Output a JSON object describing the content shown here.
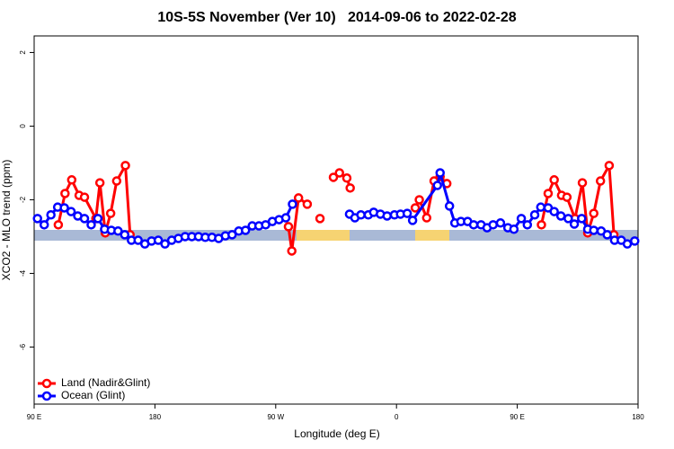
{
  "chart_data": {
    "type": "line",
    "title": "10S-5S November (Ver 10)   2014-09-06 to 2022-02-28",
    "x_label": "Longitude (deg E)",
    "y_label": "XCO2 - MLO trend (ppm)",
    "xlim": [
      90,
      540
    ],
    "xticks": [
      {
        "value": 90,
        "label": "90 E"
      },
      {
        "value": 180,
        "label": "180"
      },
      {
        "value": 270,
        "label": "90 W"
      },
      {
        "value": 360,
        "label": "0"
      },
      {
        "value": 450,
        "label": "90 E"
      },
      {
        "value": 540,
        "label": "180"
      }
    ],
    "ylim": [
      -7.55,
      2.45
    ],
    "yticks": [
      2,
      0,
      -2,
      -4,
      -6
    ],
    "legend": "bottom-left",
    "series": [
      {
        "name": "Land (Nadir&Glint)",
        "color": "#ff0000",
        "x": [
          108,
          113,
          118,
          123.5,
          127.5,
          136,
          139,
          143,
          147,
          151.5,
          158,
          161.5,
          null,
          279.5,
          282,
          287,
          293.5,
          null,
          303,
          null,
          313,
          317.5,
          323,
          325.5,
          null,
          374,
          377,
          382.5,
          388,
          392.5,
          397.5,
          null,
          468,
          473,
          477.5,
          483,
          487,
          493,
          498.5,
          502.5,
          507,
          512,
          518.5,
          522
        ],
        "values": [
          -2.68,
          -1.83,
          -1.46,
          -1.88,
          -1.93,
          -2.51,
          -1.54,
          -2.9,
          -2.37,
          -1.49,
          -1.07,
          -2.95,
          null,
          -2.73,
          -3.39,
          -1.95,
          -2.12,
          null,
          -2.51,
          null,
          -1.39,
          -1.27,
          -1.41,
          -1.68,
          null,
          -2.22,
          -2.0,
          -2.49,
          -1.49,
          -1.37,
          -1.56,
          null,
          -2.68,
          -1.83,
          -1.46,
          -1.88,
          -1.93,
          -2.51,
          -1.54,
          -2.9,
          -2.37,
          -1.49,
          -1.07,
          -2.95
        ]
      },
      {
        "name": "Ocean (Glint)",
        "color": "#0000ff",
        "x": [
          92.5,
          97.5,
          102.5,
          107.5,
          112.5,
          117.5,
          122.5,
          127.5,
          132.5,
          137.5,
          142.5,
          147.5,
          152.5,
          157.5,
          162.5,
          167.5,
          172.5,
          177.5,
          182.5,
          187.5,
          192.5,
          197.5,
          202.5,
          207.5,
          212.5,
          217.5,
          222.5,
          227.5,
          232.5,
          237.5,
          242.5,
          247.5,
          252.5,
          257.5,
          262.5,
          267.5,
          272.5,
          277.5,
          282.5,
          null,
          325,
          329,
          333.5,
          339,
          343,
          348,
          353,
          358.5,
          363,
          368,
          372,
          390.5,
          392.5,
          399.5,
          403.5,
          408,
          413,
          417.5,
          423,
          427.5,
          432,
          437.5,
          443,
          447.5,
          453,
          457.5,
          463,
          467.5,
          473,
          477.5,
          482.5,
          488,
          492.5,
          498,
          502.5,
          507,
          512.5,
          517,
          522.5,
          527.5,
          532,
          537.5
        ],
        "values": [
          -2.51,
          -2.68,
          -2.41,
          -2.2,
          -2.22,
          -2.32,
          -2.44,
          -2.51,
          -2.68,
          -2.51,
          -2.8,
          -2.83,
          -2.85,
          -2.95,
          -3.1,
          -3.1,
          -3.2,
          -3.12,
          -3.1,
          -3.2,
          -3.1,
          -3.05,
          -3.0,
          -3.0,
          -3.0,
          -3.02,
          -3.02,
          -3.05,
          -2.98,
          -2.95,
          -2.85,
          -2.83,
          -2.71,
          -2.71,
          -2.68,
          -2.59,
          -2.54,
          -2.49,
          -2.12,
          null,
          -2.39,
          -2.49,
          -2.41,
          -2.41,
          -2.34,
          -2.39,
          -2.44,
          -2.41,
          -2.39,
          -2.37,
          -2.56,
          -1.61,
          -1.27,
          -2.17,
          -2.63,
          -2.59,
          -2.59,
          -2.68,
          -2.68,
          -2.76,
          -2.68,
          -2.63,
          -2.76,
          -2.8,
          -2.51,
          -2.68,
          -2.41,
          -2.2,
          -2.22,
          -2.32,
          -2.44,
          -2.51,
          -2.66,
          -2.51,
          -2.8,
          -2.83,
          -2.85,
          -2.95,
          -3.1,
          -3.1,
          -3.2,
          -3.12
        ]
      }
    ]
  }
}
